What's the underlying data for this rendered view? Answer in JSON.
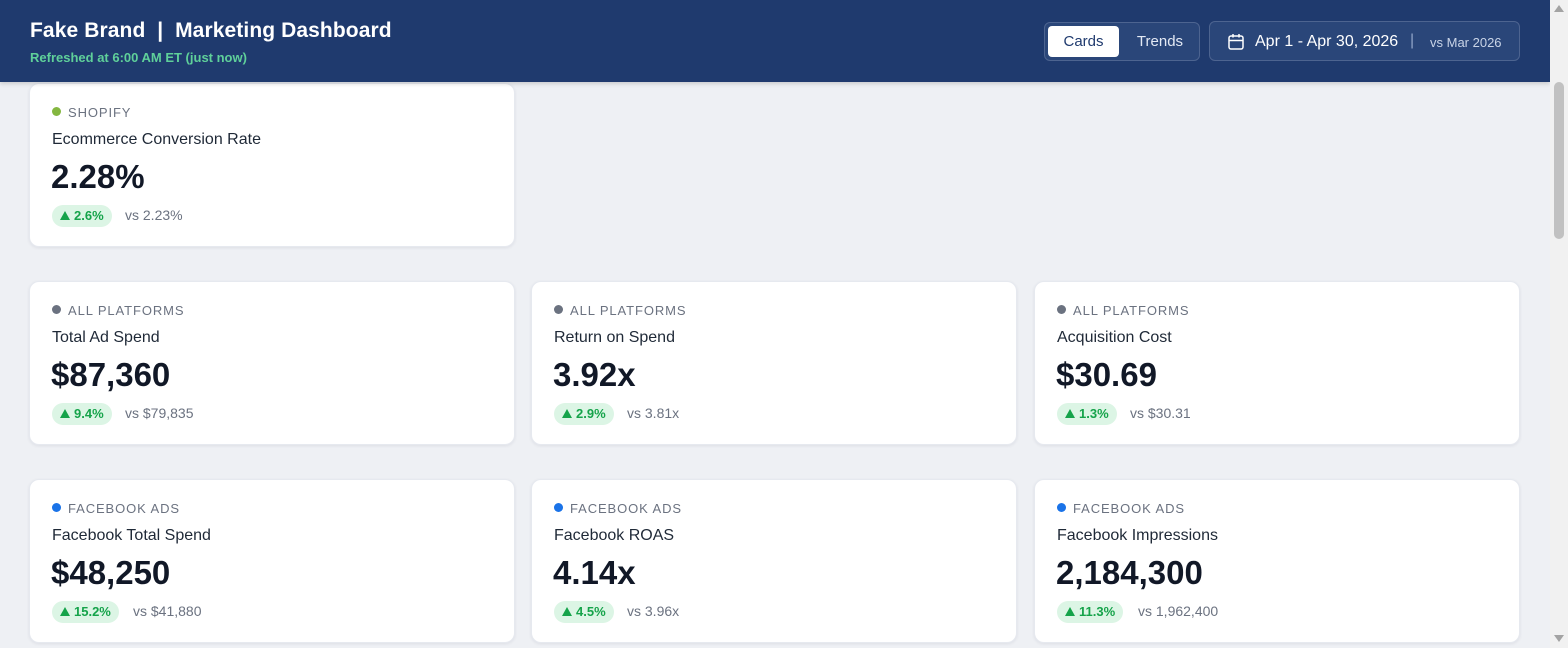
{
  "header": {
    "title": "Fake Brand  |  Marketing Dashboard",
    "refreshed": "Refreshed at 6:00 AM ET (just now)",
    "view_toggle": {
      "cards_label": "Cards",
      "trends_label": "Trends",
      "active": "Cards"
    },
    "date_range": "Apr 1 - Apr 30, 2026",
    "separator": "|",
    "comparison": "vs Mar 2026",
    "calendar_icon": "calendar-icon"
  },
  "colors": {
    "header_bg": "#1f3a6e",
    "shopify_dot": "#84b740",
    "all_platforms_dot": "#6b7280",
    "facebook_dot": "#1a73e8",
    "positive": "#15a34a",
    "positive_bg": "#dcf5e5"
  },
  "cards": [
    {
      "source": "SHOPIFY",
      "metric": "Ecommerce Conversion Rate",
      "value": "2.28%",
      "delta": "2.6%",
      "compare": "vs 2.23%"
    },
    {
      "source": "ALL PLATFORMS",
      "metric": "Total Ad Spend",
      "value": "$87,360",
      "delta": "9.4%",
      "compare": "vs $79,835"
    },
    {
      "source": "ALL PLATFORMS",
      "metric": "Return on Spend",
      "value": "3.92x",
      "delta": "2.9%",
      "compare": "vs 3.81x"
    },
    {
      "source": "ALL PLATFORMS",
      "metric": "Acquisition Cost",
      "value": "$30.69",
      "delta": "1.3%",
      "compare": "vs $30.31"
    },
    {
      "source": "FACEBOOK ADS",
      "metric": "Facebook Total Spend",
      "value": "$48,250",
      "delta": "15.2%",
      "compare": "vs $41,880"
    },
    {
      "source": "FACEBOOK ADS",
      "metric": "Facebook ROAS",
      "value": "4.14x",
      "delta": "4.5%",
      "compare": "vs 3.96x"
    },
    {
      "source": "FACEBOOK ADS",
      "metric": "Facebook Impressions",
      "value": "2,184,300",
      "delta": "11.3%",
      "compare": "vs 1,962,400"
    }
  ]
}
